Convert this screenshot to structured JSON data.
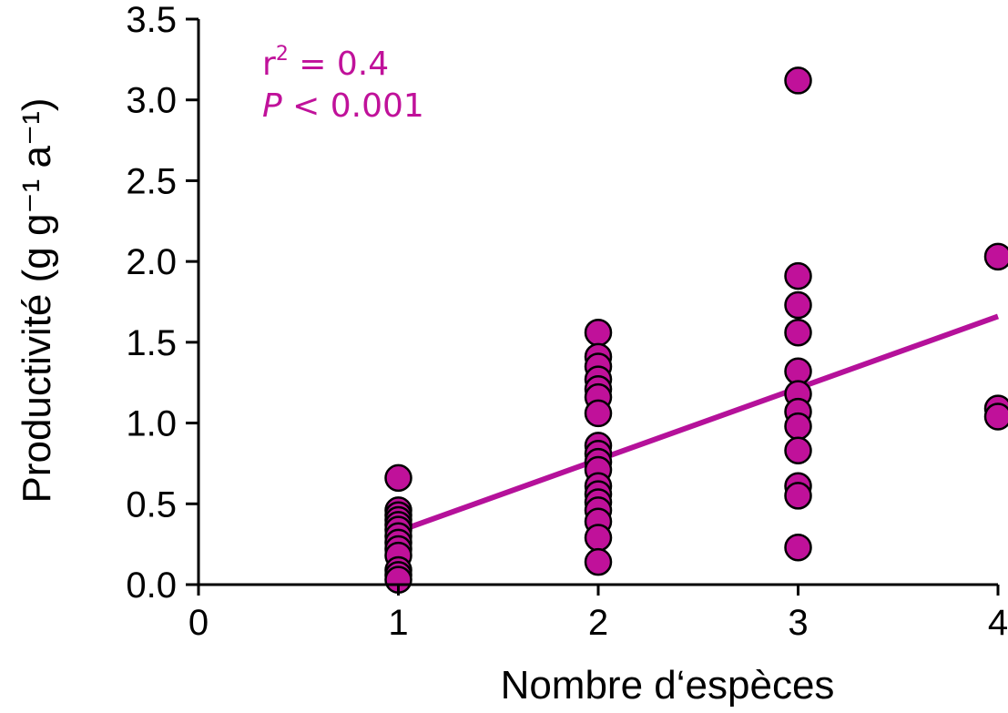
{
  "chart_data": {
    "type": "scatter",
    "xlabel": "Nombre d‘espèces",
    "ylabel": "Productivité (g g⁻¹ a⁻¹)",
    "xlim": [
      0,
      4
    ],
    "ylim": [
      0,
      3.5
    ],
    "x_ticks": [
      "0",
      "1",
      "2",
      "3",
      "4"
    ],
    "y_ticks": [
      "0.0",
      "0.5",
      "1.0",
      "1.5",
      "2.0",
      "2.5",
      "3.0",
      "3.5"
    ],
    "grid": false,
    "marker_color": "#C0119A",
    "line_color": "#B5119A",
    "points": [
      {
        "x": 1,
        "y": 0.66
      },
      {
        "x": 1,
        "y": 0.46
      },
      {
        "x": 1,
        "y": 0.43
      },
      {
        "x": 1,
        "y": 0.4
      },
      {
        "x": 1,
        "y": 0.37
      },
      {
        "x": 1,
        "y": 0.34
      },
      {
        "x": 1,
        "y": 0.3
      },
      {
        "x": 1,
        "y": 0.26
      },
      {
        "x": 1,
        "y": 0.22
      },
      {
        "x": 1,
        "y": 0.18
      },
      {
        "x": 1,
        "y": 0.09
      },
      {
        "x": 1,
        "y": 0.06
      },
      {
        "x": 1,
        "y": 0.03
      },
      {
        "x": 2,
        "y": 1.56
      },
      {
        "x": 2,
        "y": 1.41
      },
      {
        "x": 2,
        "y": 1.35
      },
      {
        "x": 2,
        "y": 1.27
      },
      {
        "x": 2,
        "y": 1.21
      },
      {
        "x": 2,
        "y": 1.16
      },
      {
        "x": 2,
        "y": 1.06
      },
      {
        "x": 2,
        "y": 0.86
      },
      {
        "x": 2,
        "y": 0.81
      },
      {
        "x": 2,
        "y": 0.76
      },
      {
        "x": 2,
        "y": 0.71
      },
      {
        "x": 2,
        "y": 0.61
      },
      {
        "x": 2,
        "y": 0.56
      },
      {
        "x": 2,
        "y": 0.51
      },
      {
        "x": 2,
        "y": 0.46
      },
      {
        "x": 2,
        "y": 0.39
      },
      {
        "x": 2,
        "y": 0.29
      },
      {
        "x": 2,
        "y": 0.14
      },
      {
        "x": 3,
        "y": 3.12
      },
      {
        "x": 3,
        "y": 1.91
      },
      {
        "x": 3,
        "y": 1.73
      },
      {
        "x": 3,
        "y": 1.56
      },
      {
        "x": 3,
        "y": 1.32
      },
      {
        "x": 3,
        "y": 1.18
      },
      {
        "x": 3,
        "y": 1.07
      },
      {
        "x": 3,
        "y": 0.98
      },
      {
        "x": 3,
        "y": 0.83
      },
      {
        "x": 3,
        "y": 0.61
      },
      {
        "x": 3,
        "y": 0.55
      },
      {
        "x": 3,
        "y": 0.23
      },
      {
        "x": 4,
        "y": 2.03
      },
      {
        "x": 4,
        "y": 1.09
      },
      {
        "x": 4,
        "y": 1.04
      }
    ],
    "trendline": {
      "x": [
        1,
        4
      ],
      "y": [
        0.33,
        1.66
      ]
    },
    "annotations": {
      "r2_label": "r",
      "r2_sup": "2",
      "r2_value": " = 0.4",
      "p_label": "P",
      "p_value": " < 0.001",
      "color": "#C0119A"
    }
  }
}
